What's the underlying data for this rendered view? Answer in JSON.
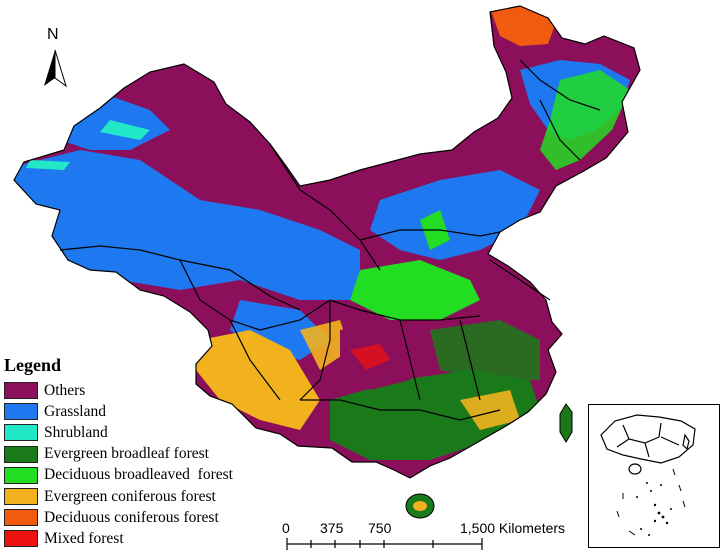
{
  "north_arrow": {
    "label": "N"
  },
  "legend": {
    "title": "Legend",
    "items": [
      {
        "label": "Others",
        "color": "#8B0F5A"
      },
      {
        "label": "Grassland",
        "color": "#1E78F0"
      },
      {
        "label": "Shrubland",
        "color": "#22E8C8"
      },
      {
        "label": "Evergreen broadleaf forest",
        "color": "#1A7A1A"
      },
      {
        "label": "Deciduous broadleaved  forest",
        "color": "#22DD22"
      },
      {
        "label": "Evergreen coniferous forest",
        "color": "#F2B21E"
      },
      {
        "label": "Deciduous coniferous forest",
        "color": "#F25A10"
      },
      {
        "label": "Mixed forest",
        "color": "#EE1111"
      }
    ]
  },
  "scale_bar": {
    "ticks": [
      "0",
      "375",
      "750",
      "1,500 Kilometers"
    ]
  },
  "colors": {
    "others": "#8B0F5A",
    "grassland": "#1E78F0",
    "shrubland": "#22E8C8",
    "evergreen_broadleaf": "#1A7A1A",
    "deciduous_broadleaf": "#22DD22",
    "evergreen_coniferous": "#F2B21E",
    "deciduous_coniferous": "#F25A10",
    "mixed": "#EE1111"
  }
}
